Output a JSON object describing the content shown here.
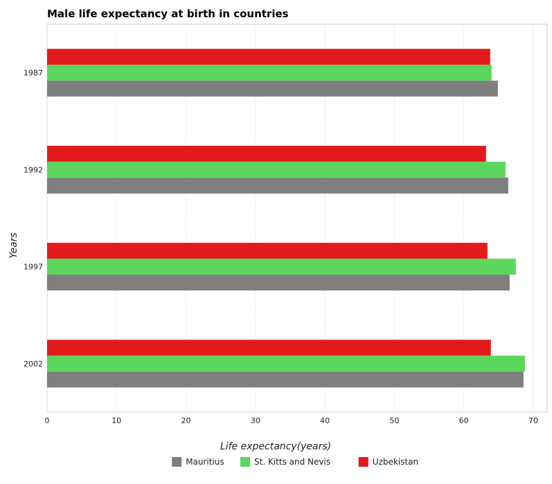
{
  "chart_data": {
    "type": "bar",
    "orientation": "horizontal",
    "title": "Male life expectancy at birth in countries",
    "xlabel": "Life expectancy(years)",
    "ylabel": "Years",
    "categories": [
      "1987",
      "1992",
      "1997",
      "2002"
    ],
    "xlim": [
      0,
      72
    ],
    "xticks": [
      0,
      10,
      20,
      30,
      40,
      50,
      60,
      70
    ],
    "grid": true,
    "legend_position": "bottom-center",
    "series": [
      {
        "name": "Mauritius",
        "color": "#7f7f7f",
        "values": [
          64.9,
          66.4,
          66.6,
          68.6
        ]
      },
      {
        "name": "St. Kitts and Nevis",
        "color": "#5cd65c",
        "values": [
          64.0,
          66.0,
          67.5,
          68.8
        ]
      },
      {
        "name": "Uzbekistan",
        "color": "#e31a1c",
        "values": [
          63.8,
          63.2,
          63.4,
          63.9
        ]
      }
    ]
  }
}
